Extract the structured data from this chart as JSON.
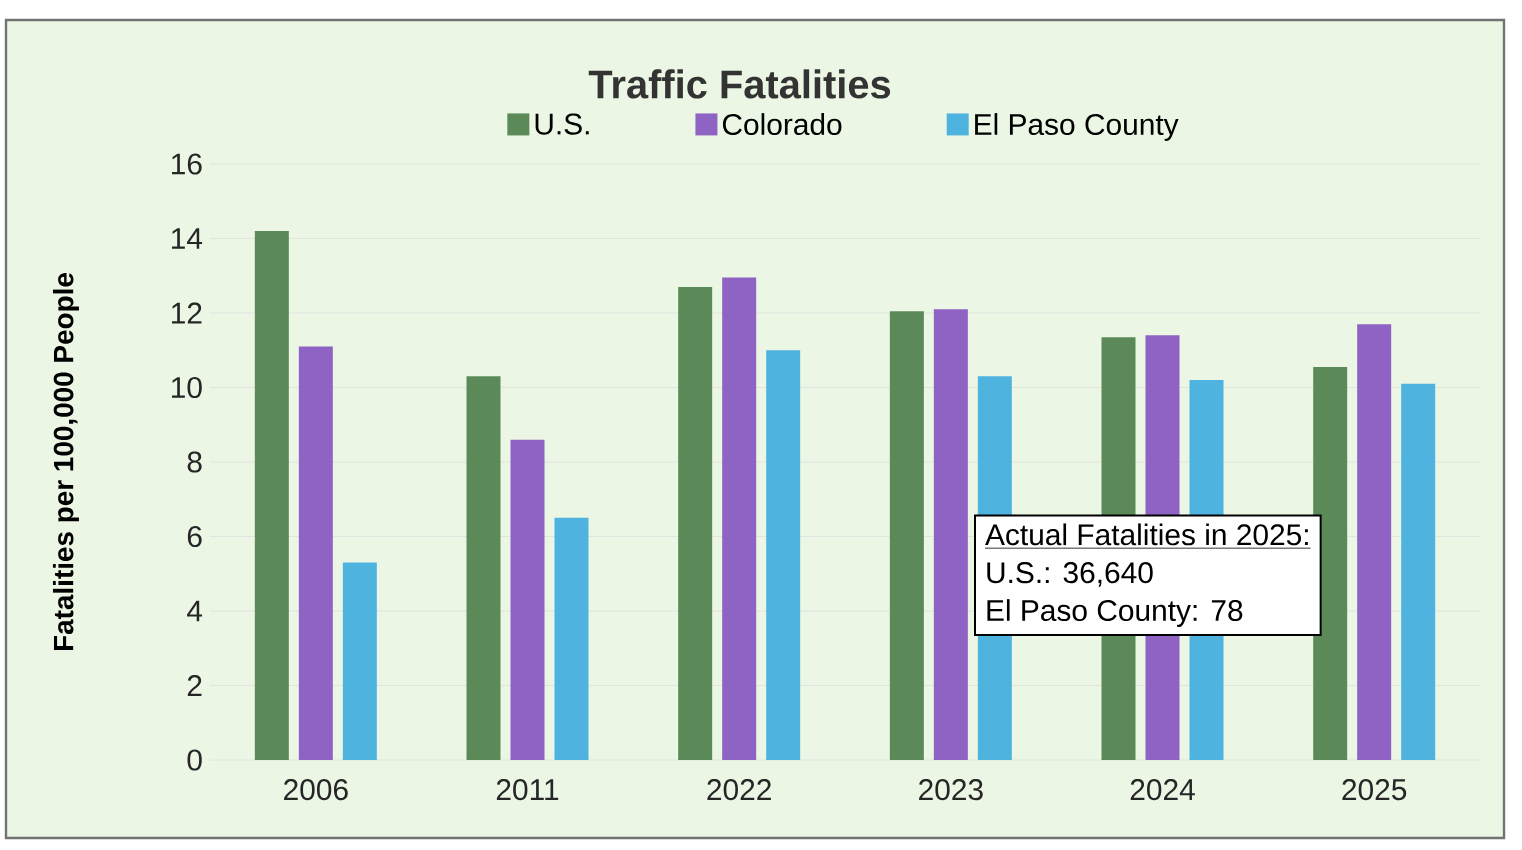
{
  "chart_data": {
    "type": "bar",
    "title": "Traffic Fatalities",
    "ylabel": "Fatalities per 100,000 People",
    "categories": [
      "2006",
      "2011",
      "2022",
      "2023",
      "2024",
      "2025"
    ],
    "series": [
      {
        "name": "U.S.",
        "color": "#5b8a58",
        "values": [
          14.2,
          10.3,
          12.7,
          12.05,
          11.35,
          10.55
        ]
      },
      {
        "name": "Colorado",
        "color": "#8e63c4",
        "values": [
          11.1,
          8.6,
          12.95,
          12.1,
          11.4,
          11.7
        ]
      },
      {
        "name": "El Paso County",
        "color": "#4fb3e0",
        "values": [
          5.3,
          6.5,
          11.0,
          10.3,
          10.2,
          10.1
        ]
      }
    ],
    "ylim": [
      0,
      16
    ],
    "yticks": [
      0,
      2,
      4,
      6,
      8,
      10,
      12,
      14,
      16
    ],
    "grid": "y",
    "legend": "top",
    "annotations": [
      "Actual Fatalities in 2025:",
      "U.S.: 36,640",
      "El Paso County: 78"
    ]
  }
}
